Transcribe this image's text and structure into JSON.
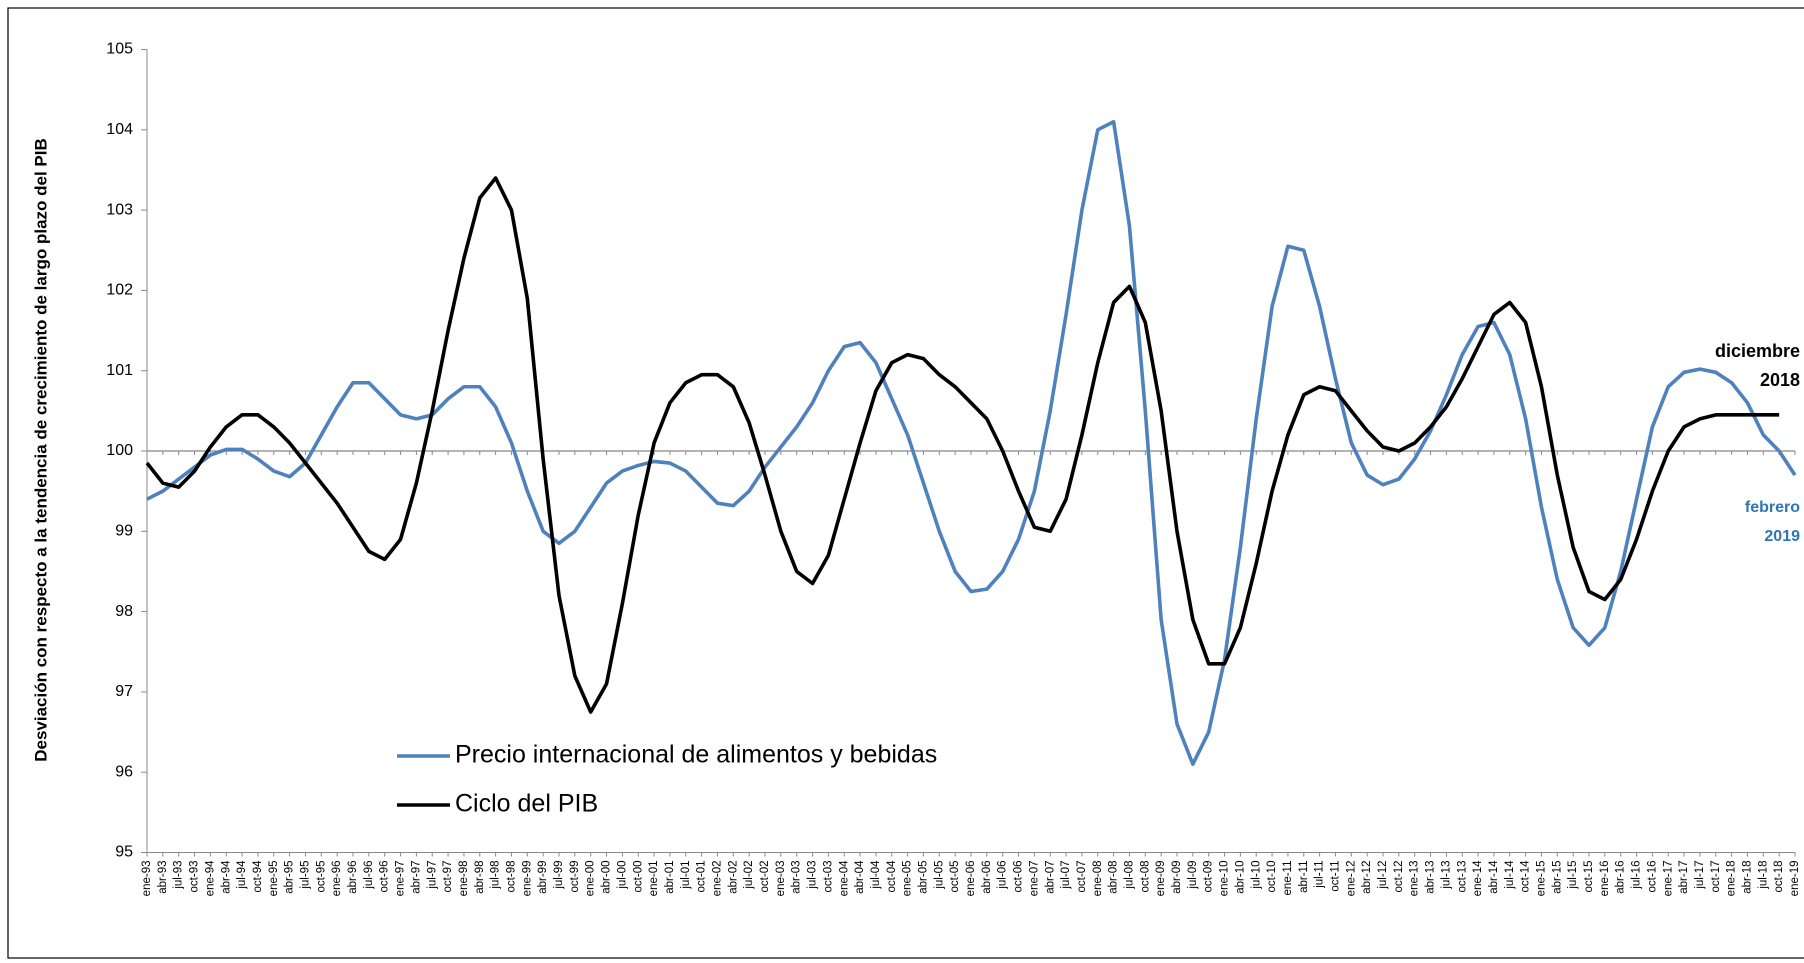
{
  "chart_data": {
    "type": "line",
    "y_label": "Desviación con respecto a la tendencia de crecimiento de largo plazo del PIB",
    "categories": [
      "ene-93",
      "abr-93",
      "jul-93",
      "oct-93",
      "ene-94",
      "abr-94",
      "jul-94",
      "oct-94",
      "ene-95",
      "abr-95",
      "jul-95",
      "oct-95",
      "ene-96",
      "abr-96",
      "jul-96",
      "oct-96",
      "ene-97",
      "abr-97",
      "jul-97",
      "oct-97",
      "ene-98",
      "abr-98",
      "jul-98",
      "oct-98",
      "ene-99",
      "abr-99",
      "jul-99",
      "oct-99",
      "ene-00",
      "abr-00",
      "jul-00",
      "oct-00",
      "ene-01",
      "abr-01",
      "jul-01",
      "oct-01",
      "ene-02",
      "abr-02",
      "jul-02",
      "oct-02",
      "ene-03",
      "abr-03",
      "jul-03",
      "oct-03",
      "ene-04",
      "abr-04",
      "jul-04",
      "oct-04",
      "ene-05",
      "abr-05",
      "jul-05",
      "oct-05",
      "ene-06",
      "abr-06",
      "jul-06",
      "oct-06",
      "ene-07",
      "abr-07",
      "jul-07",
      "oct-07",
      "ene-08",
      "abr-08",
      "jul-08",
      "oct-08",
      "ene-09",
      "abr-09",
      "jul-09",
      "oct-09",
      "ene-10",
      "abr-10",
      "jul-10",
      "oct-10",
      "ene-11",
      "abr-11",
      "jul-11",
      "oct-11",
      "ene-12",
      "abr-12",
      "jul-12",
      "oct-12",
      "ene-13",
      "abr-13",
      "jul-13",
      "oct-13",
      "ene-14",
      "abr-14",
      "jul-14",
      "oct-14",
      "ene-15",
      "abr-15",
      "jul-15",
      "oct-15",
      "ene-16",
      "abr-16",
      "jul-16",
      "oct-16",
      "ene-17",
      "abr-17",
      "jul-17",
      "oct-17",
      "ene-18",
      "abr-18",
      "jul-18",
      "oct-18",
      "ene-19"
    ],
    "series": [
      {
        "name": "Precio internacional de alimentos y bebidas",
        "color": "#4f81bd",
        "values": [
          99.4,
          99.5,
          99.65,
          99.8,
          99.95,
          100.02,
          100.02,
          99.9,
          99.75,
          99.68,
          99.85,
          100.2,
          100.55,
          100.85,
          100.85,
          100.65,
          100.45,
          100.4,
          100.45,
          100.65,
          100.8,
          100.8,
          100.55,
          100.1,
          99.5,
          99.0,
          98.85,
          99.0,
          99.3,
          99.6,
          99.75,
          99.82,
          99.87,
          99.85,
          99.75,
          99.55,
          99.35,
          99.32,
          99.5,
          99.8,
          100.05,
          100.3,
          100.6,
          101.0,
          101.3,
          101.35,
          101.1,
          100.65,
          100.2,
          99.6,
          99.0,
          98.5,
          98.25,
          98.28,
          98.5,
          98.9,
          99.5,
          100.5,
          101.7,
          103.0,
          104.0,
          104.1,
          102.8,
          100.5,
          97.9,
          96.6,
          96.1,
          96.5,
          97.4,
          98.8,
          100.4,
          101.8,
          102.55,
          102.5,
          101.8,
          100.9,
          100.1,
          99.7,
          99.58,
          99.65,
          99.9,
          100.25,
          100.7,
          101.2,
          101.55,
          101.6,
          101.2,
          100.4,
          99.3,
          98.4,
          97.8,
          97.58,
          97.8,
          98.5,
          99.4,
          100.3,
          100.8,
          100.98,
          101.02,
          100.98,
          100.85,
          100.6,
          100.2,
          100.0,
          99.7
        ]
      },
      {
        "name": "Ciclo del PIB",
        "color": "#000000",
        "values": [
          99.85,
          99.6,
          99.55,
          99.75,
          100.05,
          100.3,
          100.45,
          100.45,
          100.3,
          100.1,
          99.85,
          99.6,
          99.35,
          99.05,
          98.75,
          98.65,
          98.9,
          99.6,
          100.5,
          101.5,
          102.4,
          103.15,
          103.4,
          103.0,
          101.9,
          99.9,
          98.2,
          97.2,
          96.75,
          97.1,
          98.1,
          99.2,
          100.1,
          100.6,
          100.85,
          100.95,
          100.95,
          100.8,
          100.35,
          99.7,
          99.0,
          98.5,
          98.35,
          98.7,
          99.4,
          100.1,
          100.75,
          101.1,
          101.2,
          101.15,
          100.95,
          100.8,
          100.6,
          100.4,
          100.0,
          99.5,
          99.05,
          99.0,
          99.4,
          100.2,
          101.1,
          101.85,
          102.05,
          101.6,
          100.5,
          99.0,
          97.9,
          97.35,
          97.35,
          97.8,
          98.6,
          99.5,
          100.2,
          100.7,
          100.8,
          100.75,
          100.5,
          100.25,
          100.05,
          100.0,
          100.1,
          100.3,
          100.55,
          100.9,
          101.3,
          101.7,
          101.85,
          101.6,
          100.8,
          99.7,
          98.8,
          98.25,
          98.15,
          98.4,
          98.9,
          99.5,
          100.0,
          100.3,
          100.4,
          100.45,
          100.45,
          100.45,
          100.45,
          100.45,
          null
        ]
      }
    ],
    "ylim": [
      95,
      105
    ],
    "yticks": [
      95,
      96,
      97,
      98,
      99,
      100,
      101,
      102,
      103,
      104,
      105
    ],
    "reference_line": 100,
    "annotations": [
      {
        "lines": [
          "diciembre",
          "2018"
        ],
        "color": "#000000"
      },
      {
        "lines": [
          "febrero",
          "2019"
        ],
        "color": "#2e75b6"
      }
    ],
    "legend": "lower left"
  }
}
